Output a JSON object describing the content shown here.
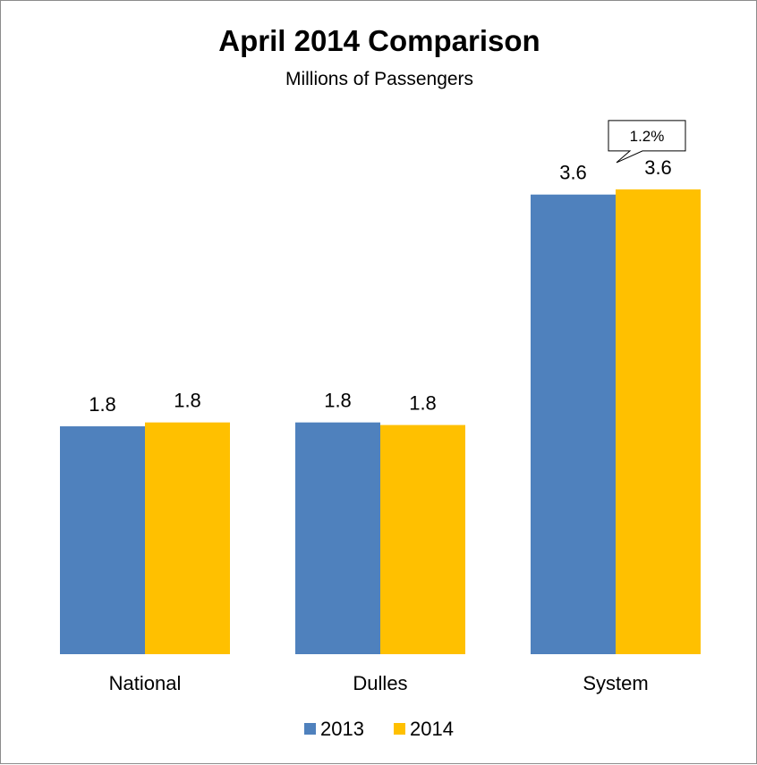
{
  "chart_data": {
    "type": "bar",
    "title": "April 2014 Comparison",
    "subtitle": "Millions of Passengers",
    "categories": [
      "National",
      "Dulles",
      "System"
    ],
    "series": [
      {
        "name": "2013",
        "values": [
          1.76,
          1.79,
          3.55
        ],
        "labels": [
          "1.8",
          "1.8",
          "3.6"
        ]
      },
      {
        "name": "2014",
        "values": [
          1.79,
          1.77,
          3.59
        ],
        "labels": [
          "1.8",
          "1.8",
          "3.6"
        ]
      }
    ],
    "ylim": [
      0,
      3.9
    ],
    "grid": false,
    "legend": "bottom",
    "annotations": [
      {
        "text": "1.2%",
        "category": "System",
        "series": "2014"
      }
    ]
  },
  "colors": {
    "2013": "#4f81bd",
    "2014": "#ffc000",
    "frame": "#8c8c8c",
    "text": "#000000"
  }
}
